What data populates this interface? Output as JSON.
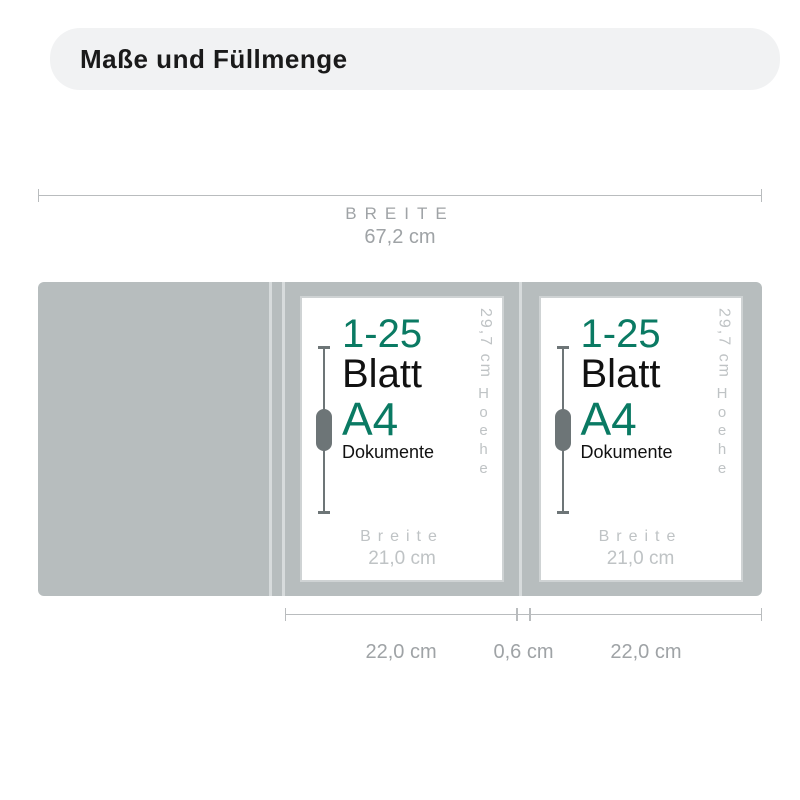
{
  "header": {
    "title": "Maße und Füllmenge"
  },
  "total_width": {
    "label": "BREITE",
    "value": "67,2 cm"
  },
  "sheet": {
    "capacity": "1-25",
    "unit": "Blatt",
    "format": "A4",
    "docs": "Dokumente",
    "inner_width_label": "Breite",
    "inner_width_value": "21,0 cm",
    "height_value": "29,7 cm",
    "height_label": "Hoehe"
  },
  "bottom": {
    "panel": "22,0 cm",
    "spine": "0,6 cm"
  },
  "colors": {
    "folder": "#b7bdbe",
    "accent_green": "#0a7a63",
    "dim_text": "#9fa3a6",
    "sheet_dim_text": "#bfc3c5",
    "header_bg": "#f1f2f3",
    "clip": "#6d7577"
  }
}
